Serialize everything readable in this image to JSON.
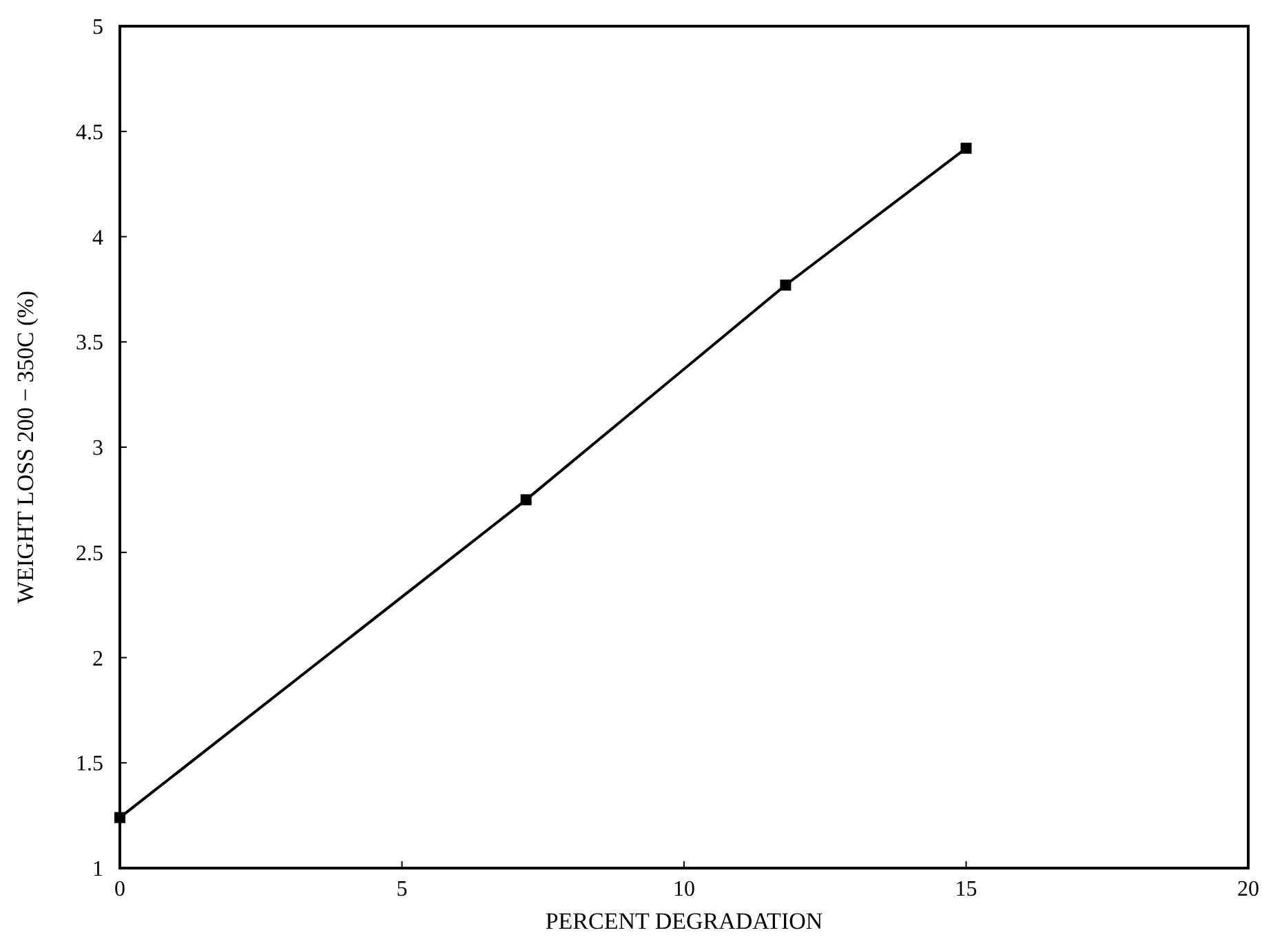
{
  "chart_data": {
    "type": "line",
    "xlabel": "PERCENT DEGRADATION",
    "ylabel": "WEIGHT LOSS 200 − 350C (%)",
    "x": [
      0,
      7.2,
      11.8,
      15
    ],
    "series": [
      {
        "color": "#000000",
        "values": [
          1.24,
          2.75,
          3.77,
          4.42
        ]
      }
    ],
    "xlim": [
      0,
      20
    ],
    "xticks": [
      0,
      5,
      10,
      15,
      20
    ],
    "ylim": [
      1,
      5
    ],
    "yticks": [
      1,
      1.5,
      2,
      2.5,
      3,
      3.5,
      4,
      4.5,
      5
    ],
    "marker": "square",
    "line_style": "solid"
  }
}
